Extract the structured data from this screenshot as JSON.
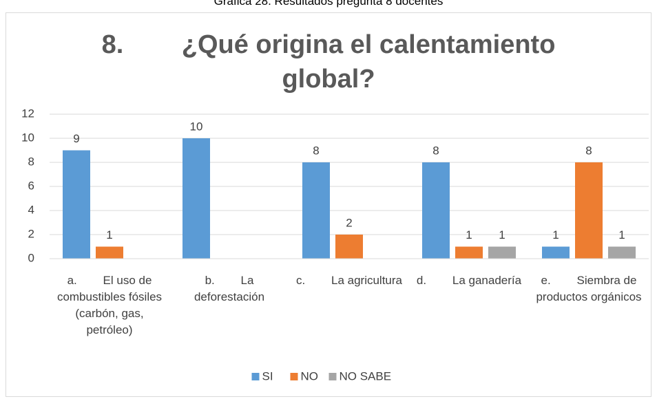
{
  "chart_data": {
    "type": "bar",
    "caption": "Gráfica 28. Resultados pregunta 8 docentes",
    "title": "8.        ¿Qué origina el calentamiento global?",
    "categories": [
      "a.        El uso de combustibles fósiles (carbón, gas, petróleo)",
      "b.        La deforestación",
      "c.        La agricultura",
      "d.        La ganadería",
      "e.        Siembra de productos orgánicos"
    ],
    "series": [
      {
        "name": "SI",
        "color": "#5b9bd5",
        "values": [
          9,
          10,
          8,
          8,
          1
        ]
      },
      {
        "name": "NO",
        "color": "#ed7d31",
        "values": [
          1,
          null,
          2,
          1,
          8
        ]
      },
      {
        "name": "NO SABE",
        "color": "#a5a5a5",
        "values": [
          null,
          null,
          null,
          1,
          1
        ]
      }
    ],
    "ylim": [
      0,
      12
    ],
    "yticks": [
      0,
      2,
      4,
      6,
      8,
      10,
      12
    ],
    "grid": true,
    "legend": "bottom"
  }
}
